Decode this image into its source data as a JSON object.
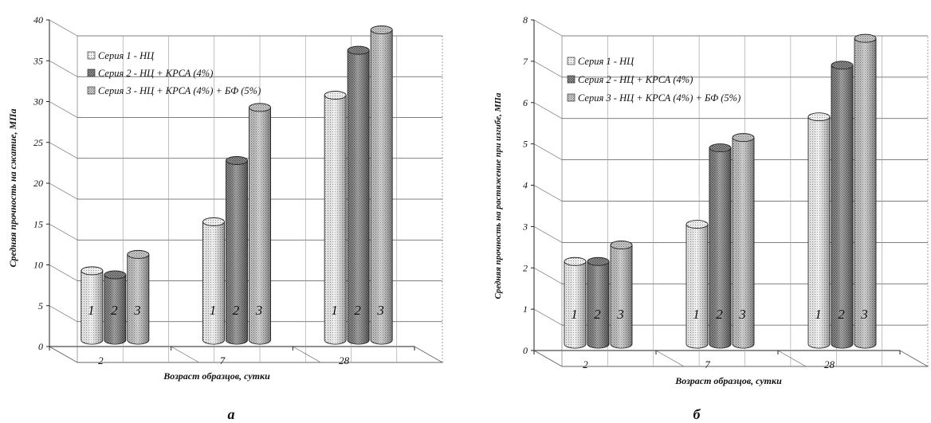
{
  "chart_data": [
    {
      "type": "bar",
      "panel_label": "а",
      "categories": [
        "2",
        "7",
        "28"
      ],
      "series": [
        {
          "name": "Серия 1 - НЦ",
          "values": [
            8.5,
            14.5,
            30
          ]
        },
        {
          "name": "Серия 2 - НЦ + КРСА (4%)",
          "values": [
            8,
            22,
            35.5
          ]
        },
        {
          "name": "Серия 3 - НЦ + КРСА (4%) + БФ (5%)",
          "values": [
            10.5,
            28.5,
            38
          ]
        }
      ],
      "bar_labels": [
        "1",
        "2",
        "3"
      ],
      "xlabel": "Возраст образцов, сутки",
      "ylabel": "Средняя прочность на сжатие, МПа",
      "ylim": [
        0,
        40
      ],
      "yticks": [
        "0",
        "5",
        "10",
        "15",
        "20",
        "25",
        "30",
        "35",
        "40"
      ],
      "grid": true,
      "legend_position": "top-left"
    },
    {
      "type": "bar",
      "panel_label": "б",
      "categories": [
        "2",
        "7",
        "28"
      ],
      "series": [
        {
          "name": "Серия 1 - НЦ",
          "values": [
            2,
            2.9,
            5.5
          ]
        },
        {
          "name": "Серия 2 - НЦ + КРСА (4%)",
          "values": [
            2,
            4.75,
            6.75
          ]
        },
        {
          "name": "Серия 3 - НЦ + КРСА (4%) + БФ (5%)",
          "values": [
            2.4,
            5,
            7.4
          ]
        }
      ],
      "bar_labels": [
        "1",
        "2",
        "3"
      ],
      "xlabel": "Возраст образцов, сутки",
      "ylabel": "Средняя прочность на растяжение при изгибе, МПа",
      "ylim": [
        0,
        8
      ],
      "yticks": [
        "0",
        "1",
        "2",
        "3",
        "4",
        "5",
        "6",
        "7",
        "8"
      ],
      "grid": true,
      "legend_position": "top-left"
    }
  ]
}
